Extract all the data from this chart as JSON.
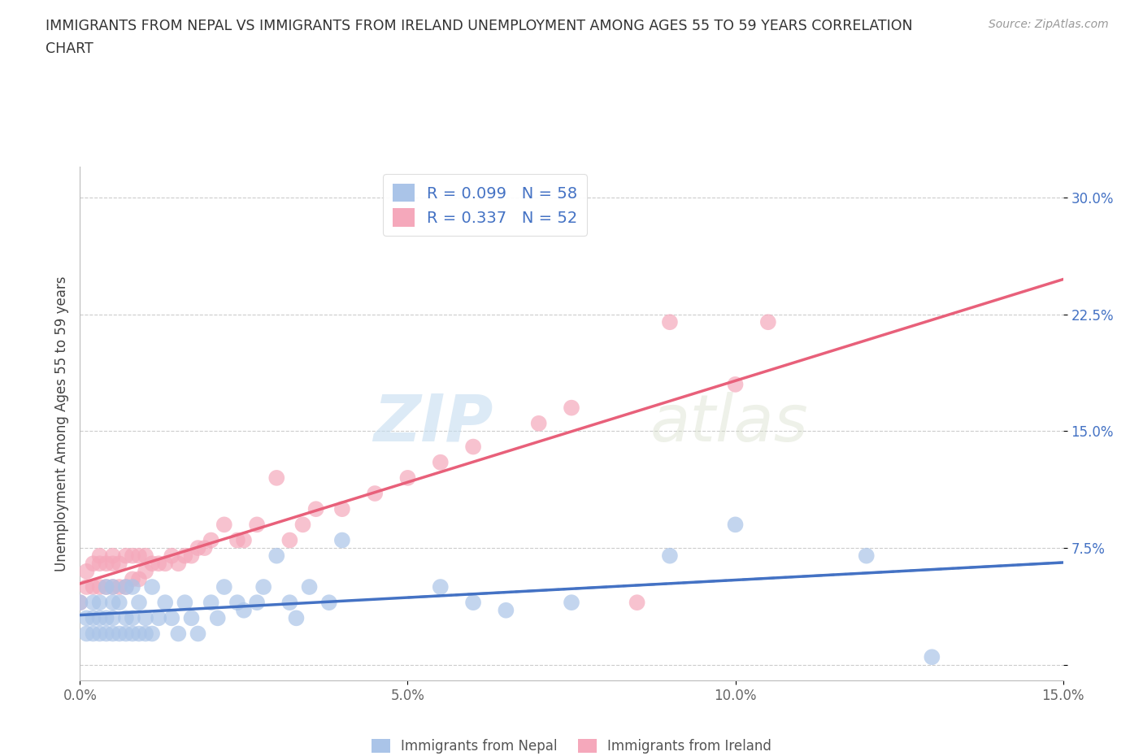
{
  "title_line1": "IMMIGRANTS FROM NEPAL VS IMMIGRANTS FROM IRELAND UNEMPLOYMENT AMONG AGES 55 TO 59 YEARS CORRELATION",
  "title_line2": "CHART",
  "source": "Source: ZipAtlas.com",
  "ylabel": "Unemployment Among Ages 55 to 59 years",
  "xlim": [
    0,
    0.15
  ],
  "ylim": [
    -0.01,
    0.32
  ],
  "xticks": [
    0,
    0.05,
    0.1,
    0.15
  ],
  "xticklabels": [
    "0.0%",
    "5.0%",
    "10.0%",
    "15.0%"
  ],
  "yticks": [
    0.0,
    0.075,
    0.15,
    0.225,
    0.3
  ],
  "yticklabels": [
    "",
    "7.5%",
    "15.0%",
    "22.5%",
    "30.0%"
  ],
  "nepal_color": "#aac4e8",
  "ireland_color": "#f5a8bb",
  "nepal_line_color": "#4472c4",
  "ireland_line_color": "#e8607a",
  "nepal_R": 0.099,
  "nepal_N": 58,
  "ireland_R": 0.337,
  "ireland_N": 52,
  "watermark_zip": "ZIP",
  "watermark_atlas": "atlas",
  "nepal_x": [
    0.0,
    0.001,
    0.001,
    0.002,
    0.002,
    0.002,
    0.003,
    0.003,
    0.003,
    0.004,
    0.004,
    0.004,
    0.005,
    0.005,
    0.005,
    0.005,
    0.006,
    0.006,
    0.007,
    0.007,
    0.007,
    0.008,
    0.008,
    0.008,
    0.009,
    0.009,
    0.01,
    0.01,
    0.011,
    0.011,
    0.012,
    0.013,
    0.014,
    0.015,
    0.016,
    0.017,
    0.018,
    0.02,
    0.021,
    0.022,
    0.024,
    0.025,
    0.027,
    0.028,
    0.03,
    0.032,
    0.033,
    0.035,
    0.038,
    0.04,
    0.055,
    0.06,
    0.065,
    0.075,
    0.09,
    0.1,
    0.12,
    0.13
  ],
  "nepal_y": [
    0.04,
    0.02,
    0.03,
    0.02,
    0.03,
    0.04,
    0.02,
    0.03,
    0.04,
    0.02,
    0.03,
    0.05,
    0.02,
    0.03,
    0.04,
    0.05,
    0.02,
    0.04,
    0.02,
    0.03,
    0.05,
    0.02,
    0.03,
    0.05,
    0.02,
    0.04,
    0.02,
    0.03,
    0.02,
    0.05,
    0.03,
    0.04,
    0.03,
    0.02,
    0.04,
    0.03,
    0.02,
    0.04,
    0.03,
    0.05,
    0.04,
    0.035,
    0.04,
    0.05,
    0.07,
    0.04,
    0.03,
    0.05,
    0.04,
    0.08,
    0.05,
    0.04,
    0.035,
    0.04,
    0.07,
    0.09,
    0.07,
    0.005
  ],
  "ireland_x": [
    0.0,
    0.001,
    0.001,
    0.002,
    0.002,
    0.003,
    0.003,
    0.003,
    0.004,
    0.004,
    0.005,
    0.005,
    0.005,
    0.006,
    0.006,
    0.007,
    0.007,
    0.008,
    0.008,
    0.009,
    0.009,
    0.01,
    0.01,
    0.011,
    0.012,
    0.013,
    0.014,
    0.015,
    0.016,
    0.017,
    0.018,
    0.019,
    0.02,
    0.022,
    0.024,
    0.025,
    0.027,
    0.03,
    0.032,
    0.034,
    0.036,
    0.04,
    0.045,
    0.05,
    0.055,
    0.06,
    0.07,
    0.075,
    0.085,
    0.09,
    0.1,
    0.105
  ],
  "ireland_y": [
    0.04,
    0.05,
    0.06,
    0.05,
    0.065,
    0.05,
    0.065,
    0.07,
    0.05,
    0.065,
    0.05,
    0.065,
    0.07,
    0.05,
    0.065,
    0.05,
    0.07,
    0.055,
    0.07,
    0.055,
    0.07,
    0.06,
    0.07,
    0.065,
    0.065,
    0.065,
    0.07,
    0.065,
    0.07,
    0.07,
    0.075,
    0.075,
    0.08,
    0.09,
    0.08,
    0.08,
    0.09,
    0.12,
    0.08,
    0.09,
    0.1,
    0.1,
    0.11,
    0.12,
    0.13,
    0.14,
    0.155,
    0.165,
    0.04,
    0.22,
    0.18,
    0.22
  ],
  "background_color": "#ffffff",
  "grid_color": "#cccccc"
}
